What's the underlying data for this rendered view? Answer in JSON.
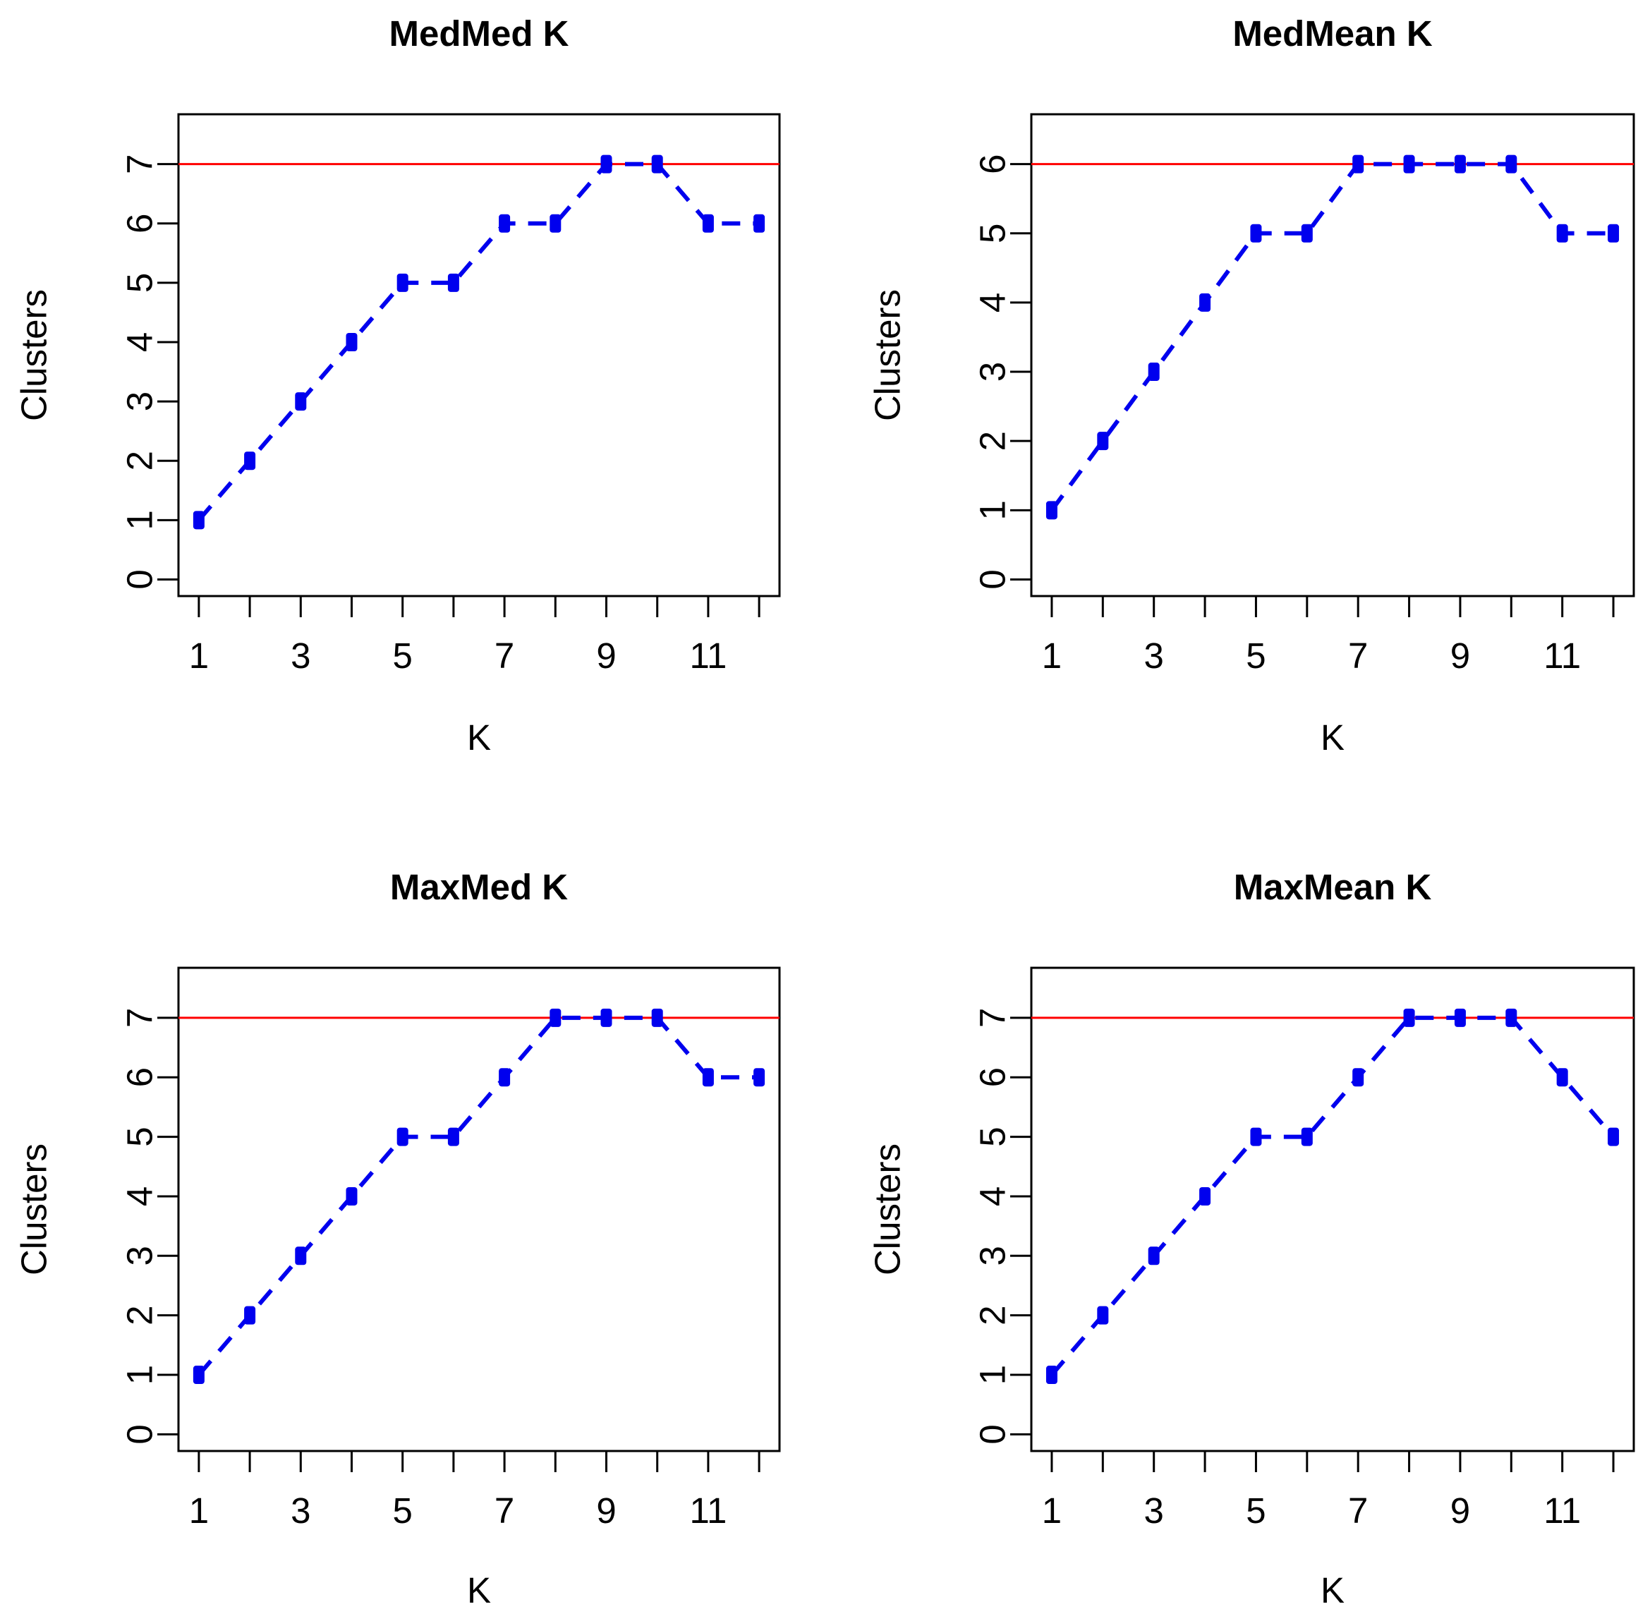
{
  "chart_data": [
    {
      "type": "line",
      "title": "MedMed K",
      "xlabel": "K",
      "ylabel": "Clusters",
      "x": [
        1,
        2,
        3,
        4,
        5,
        6,
        7,
        8,
        9,
        10,
        11,
        12
      ],
      "x_tick_labels": [
        "1",
        "3",
        "5",
        "7",
        "9",
        "11"
      ],
      "y_tick_labels": [
        "0",
        "1",
        "2",
        "3",
        "4",
        "5",
        "6",
        "7"
      ],
      "xlim": [
        0.6,
        12.4
      ],
      "ylim": [
        -0.28,
        7.84
      ],
      "series": [
        {
          "name": "Clusters",
          "values": [
            1,
            2,
            3,
            4,
            5,
            5,
            6,
            6,
            7,
            7,
            6,
            6
          ]
        }
      ],
      "reference_line": 7
    },
    {
      "type": "line",
      "title": "MedMean K",
      "xlabel": "K",
      "ylabel": "Clusters",
      "x": [
        1,
        2,
        3,
        4,
        5,
        6,
        7,
        8,
        9,
        10,
        11,
        12
      ],
      "x_tick_labels": [
        "1",
        "3",
        "5",
        "7",
        "9",
        "11"
      ],
      "y_tick_labels": [
        "0",
        "1",
        "2",
        "3",
        "4",
        "5",
        "6"
      ],
      "xlim": [
        0.6,
        12.4
      ],
      "ylim": [
        -0.24,
        6.72
      ],
      "series": [
        {
          "name": "Clusters",
          "values": [
            1,
            2,
            3,
            4,
            5,
            5,
            6,
            6,
            6,
            6,
            5,
            5
          ]
        }
      ],
      "reference_line": 6
    },
    {
      "type": "line",
      "title": "MaxMed K",
      "xlabel": "K",
      "ylabel": "Clusters",
      "x": [
        1,
        2,
        3,
        4,
        5,
        6,
        7,
        8,
        9,
        10,
        11,
        12
      ],
      "x_tick_labels": [
        "1",
        "3",
        "5",
        "7",
        "9",
        "11"
      ],
      "y_tick_labels": [
        "0",
        "1",
        "2",
        "3",
        "4",
        "5",
        "6",
        "7"
      ],
      "xlim": [
        0.6,
        12.4
      ],
      "ylim": [
        -0.28,
        7.84
      ],
      "series": [
        {
          "name": "Clusters",
          "values": [
            1,
            2,
            3,
            4,
            5,
            5,
            6,
            7,
            7,
            7,
            6,
            6
          ]
        }
      ],
      "reference_line": 7
    },
    {
      "type": "line",
      "title": "MaxMean K",
      "xlabel": "K",
      "ylabel": "Clusters",
      "x": [
        1,
        2,
        3,
        4,
        5,
        6,
        7,
        8,
        9,
        10,
        11,
        12
      ],
      "x_tick_labels": [
        "1",
        "3",
        "5",
        "7",
        "9",
        "11"
      ],
      "y_tick_labels": [
        "0",
        "1",
        "2",
        "3",
        "4",
        "5",
        "6",
        "7"
      ],
      "xlim": [
        0.6,
        12.4
      ],
      "ylim": [
        -0.28,
        7.84
      ],
      "series": [
        {
          "name": "Clusters",
          "values": [
            1,
            2,
            3,
            4,
            5,
            5,
            6,
            7,
            7,
            7,
            6,
            5
          ]
        }
      ],
      "reference_line": 7
    }
  ],
  "colors": {
    "series_line": "#0000ee",
    "marker": "#0000ee",
    "reference_line": "#ff0000",
    "axis": "#000000"
  }
}
